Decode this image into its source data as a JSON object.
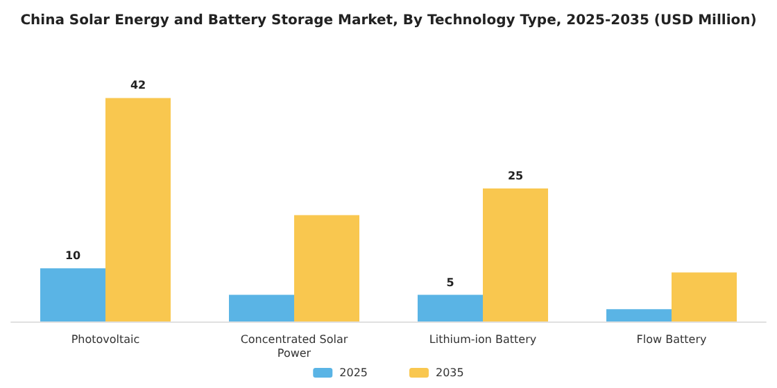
{
  "chart_data": {
    "type": "bar",
    "title": "China Solar Energy and Battery Storage Market, By Technology Type, 2025-2035 (USD Million)",
    "categories": [
      "Photovoltaic",
      "Concentrated Solar\nPower",
      "Lithium-ion Battery",
      "Flow Battery"
    ],
    "series": [
      {
        "name": "2025",
        "color": "#5ab4e5",
        "values": [
          10,
          5,
          5,
          2.3
        ],
        "value_labels": [
          "10",
          null,
          "5",
          null
        ]
      },
      {
        "name": "2035",
        "color": "#f9c74f",
        "values": [
          42,
          20,
          25,
          9.2
        ],
        "value_labels": [
          "42",
          null,
          "25",
          null
        ]
      }
    ],
    "legend": "bottom"
  }
}
